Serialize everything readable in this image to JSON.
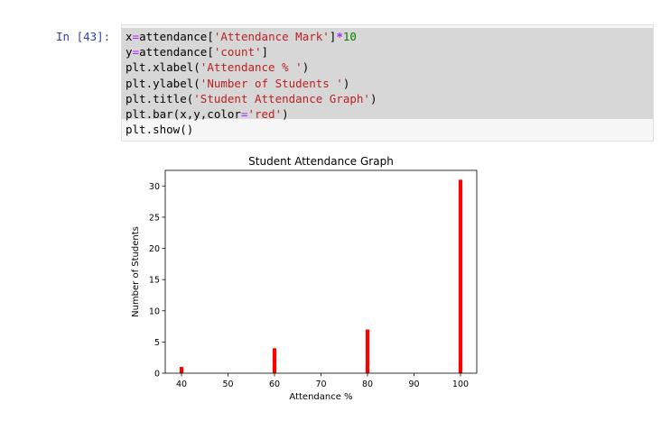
{
  "cell": {
    "prompt": "In [43]:",
    "code_lines": [
      [
        {
          "t": "x",
          "c": "plain"
        },
        {
          "t": "=",
          "c": "eq"
        },
        {
          "t": "attendance[",
          "c": "plain"
        },
        {
          "t": "'Attendance Mark'",
          "c": "str"
        },
        {
          "t": "]",
          "c": "plain"
        },
        {
          "t": "*",
          "c": "op"
        },
        {
          "t": "10",
          "c": "num"
        }
      ],
      [
        {
          "t": "y",
          "c": "plain"
        },
        {
          "t": "=",
          "c": "eq"
        },
        {
          "t": "attendance[",
          "c": "plain"
        },
        {
          "t": "'count'",
          "c": "str"
        },
        {
          "t": "]",
          "c": "plain"
        }
      ],
      [
        {
          "t": "plt.xlabel(",
          "c": "plain"
        },
        {
          "t": "'Attendance % '",
          "c": "str"
        },
        {
          "t": ")",
          "c": "plain"
        }
      ],
      [
        {
          "t": "plt.ylabel(",
          "c": "plain"
        },
        {
          "t": "'Number of Students '",
          "c": "str"
        },
        {
          "t": ")",
          "c": "plain"
        }
      ],
      [
        {
          "t": "plt.title(",
          "c": "plain"
        },
        {
          "t": "'Student Attendance Graph'",
          "c": "str"
        },
        {
          "t": ")",
          "c": "plain"
        }
      ],
      [
        {
          "t": "plt.bar(x,y,color",
          "c": "plain"
        },
        {
          "t": "=",
          "c": "eq"
        },
        {
          "t": "'red'",
          "c": "str"
        },
        {
          "t": ")",
          "c": "plain"
        }
      ],
      [
        {
          "t": "plt.show()",
          "c": "plain"
        }
      ]
    ],
    "colors": {
      "plain": "#000000",
      "str": "#ba2121",
      "num": "#008000",
      "op": "#aa22ff",
      "eq": "#aa22ff"
    }
  },
  "chart_data": {
    "type": "bar",
    "title": "Student Attendance Graph",
    "xlabel": "Attendance %",
    "ylabel": "Number of Students",
    "x": [
      40,
      60,
      80,
      100
    ],
    "values": [
      1,
      4,
      7,
      31
    ],
    "bar_color": "#ff0000",
    "xlim": [
      36.5,
      103.5
    ],
    "ylim": [
      0,
      32.5
    ],
    "xticks": [
      40,
      50,
      60,
      70,
      80,
      90,
      100
    ],
    "yticks": [
      0,
      5,
      10,
      15,
      20,
      25,
      30
    ],
    "grid": false
  }
}
